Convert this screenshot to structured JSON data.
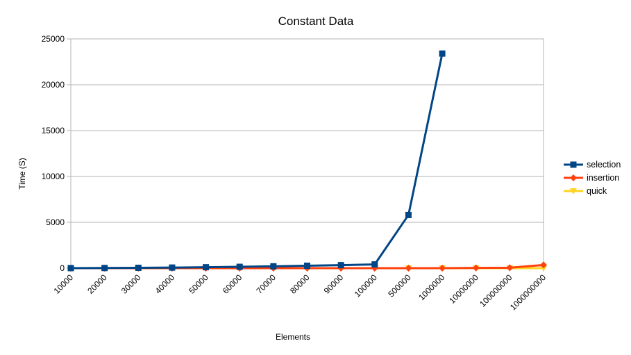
{
  "chart_data": {
    "type": "line",
    "title": "Constant Data",
    "xlabel": "Elements",
    "ylabel": "Time (S)",
    "ylim": [
      0,
      25000
    ],
    "yticks": [
      0,
      5000,
      10000,
      15000,
      20000,
      25000
    ],
    "grid": true,
    "legend_position": "right",
    "categories": [
      "10000",
      "20000",
      "30000",
      "40000",
      "50000",
      "60000",
      "70000",
      "80000",
      "90000",
      "100000",
      "500000",
      "1000000",
      "10000000",
      "100000000",
      "1000000000"
    ],
    "series": [
      {
        "name": "selection",
        "color": "#004586",
        "marker": "square",
        "values": [
          4,
          16,
          37,
          65,
          102,
          147,
          200,
          262,
          331,
          409,
          5800,
          23400,
          null,
          null,
          null
        ]
      },
      {
        "name": "insertion",
        "color": "#ff420e",
        "marker": "diamond",
        "values": [
          0,
          0,
          0,
          0,
          0,
          0,
          0,
          0,
          0,
          0,
          0,
          0,
          30,
          45,
          350
        ]
      },
      {
        "name": "quick",
        "color": "#ffd320",
        "marker": "triangle",
        "values": [
          0,
          0,
          0,
          0,
          0,
          0,
          0,
          0,
          0,
          0,
          0,
          0,
          0,
          0,
          0
        ]
      }
    ]
  }
}
